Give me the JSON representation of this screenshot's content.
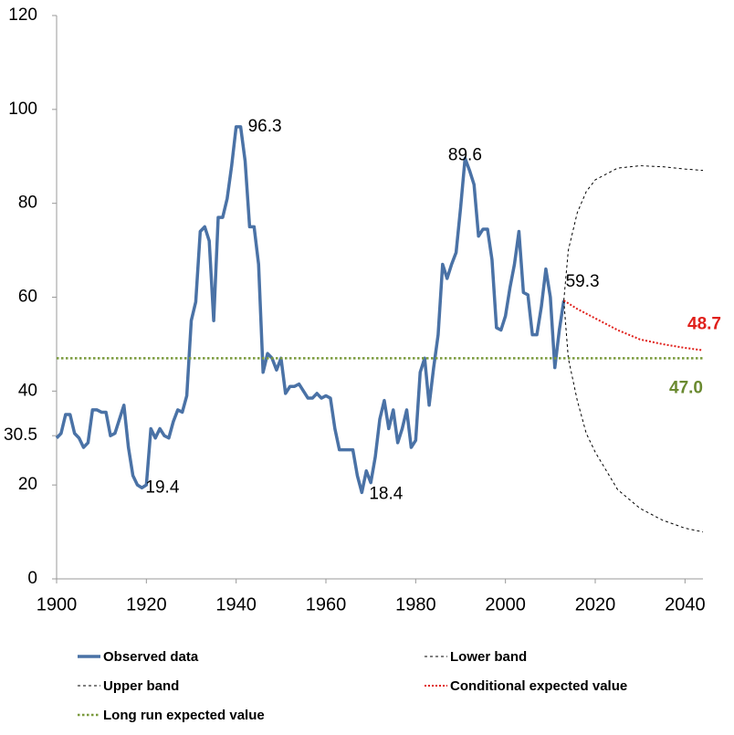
{
  "chart_data": {
    "type": "line",
    "xlim": [
      1900,
      2044
    ],
    "xticks": [
      1900,
      1920,
      1940,
      1960,
      1980,
      2000,
      2020,
      2040
    ],
    "ylim": [
      0,
      120
    ],
    "yticks": [
      0,
      20,
      30.5,
      40,
      60,
      80,
      100,
      120
    ],
    "grid": false,
    "legend": "bottom",
    "series": [
      {
        "name": "Observed data",
        "color": "#4a72a6",
        "style": "solid",
        "x": [
          1900,
          1901,
          1902,
          1903,
          1904,
          1905,
          1906,
          1907,
          1908,
          1909,
          1910,
          1911,
          1912,
          1913,
          1914,
          1915,
          1916,
          1917,
          1918,
          1919,
          1920,
          1921,
          1922,
          1923,
          1924,
          1925,
          1926,
          1927,
          1928,
          1929,
          1930,
          1931,
          1932,
          1933,
          1934,
          1935,
          1936,
          1937,
          1938,
          1939,
          1940,
          1941,
          1942,
          1943,
          1944,
          1945,
          1946,
          1947,
          1948,
          1949,
          1950,
          1951,
          1952,
          1953,
          1954,
          1955,
          1956,
          1957,
          1958,
          1959,
          1960,
          1961,
          1962,
          1963,
          1964,
          1965,
          1966,
          1967,
          1968,
          1969,
          1970,
          1971,
          1972,
          1973,
          1974,
          1975,
          1976,
          1977,
          1978,
          1979,
          1980,
          1981,
          1982,
          1983,
          1984,
          1985,
          1986,
          1987,
          1988,
          1989,
          1990,
          1991,
          1992,
          1993,
          1994,
          1995,
          1996,
          1997,
          1998,
          1999,
          2000,
          2001,
          2002,
          2003,
          2004,
          2005,
          2006,
          2007,
          2008,
          2009,
          2010,
          2011,
          2012,
          2013
        ],
        "values": [
          30,
          31,
          35,
          35,
          31,
          30,
          28,
          29,
          36,
          36,
          35.5,
          35.5,
          30.5,
          31,
          34,
          37,
          28,
          22,
          20,
          19.4,
          20,
          32,
          30,
          32,
          30.5,
          30,
          33.5,
          36,
          35.5,
          39,
          55,
          59,
          74,
          75,
          72,
          55,
          77,
          77,
          81,
          88,
          96.3,
          96.3,
          89,
          75,
          75,
          67,
          44,
          48,
          47,
          44.5,
          47,
          39.5,
          41,
          41,
          41.5,
          40,
          38.5,
          38.5,
          39.5,
          38.5,
          39,
          38.5,
          32,
          27.5,
          27.5,
          27.5,
          27.5,
          22,
          18.4,
          23,
          20.5,
          26,
          34,
          38,
          32,
          36,
          29,
          32,
          36,
          28,
          29.5,
          44,
          47,
          37,
          45,
          52,
          67,
          64,
          67,
          69.5,
          79,
          89.6,
          87,
          84,
          73,
          74.5,
          74.5,
          68,
          53.5,
          53,
          56,
          62,
          67,
          74,
          61,
          60.5,
          52,
          52,
          58,
          66,
          60,
          45,
          53,
          59.3
        ]
      },
      {
        "name": "Lower band",
        "color": "#000000",
        "style": "dashed",
        "x": [
          2013,
          2014,
          2016,
          2018,
          2020,
          2025,
          2030,
          2035,
          2040,
          2044
        ],
        "values": [
          59.3,
          47,
          38,
          31,
          27,
          19,
          15,
          12.5,
          10.8,
          10
        ]
      },
      {
        "name": "Upper band",
        "color": "#000000",
        "style": "dashed",
        "x": [
          2013,
          2014,
          2016,
          2018,
          2020,
          2025,
          2030,
          2035,
          2040,
          2044
        ],
        "values": [
          59.3,
          70,
          78,
          82.5,
          85,
          87.5,
          88,
          87.8,
          87.3,
          87
        ]
      },
      {
        "name": "Conditional expected value",
        "color": "#e0201b",
        "style": "dotted",
        "x": [
          2013,
          2016,
          2020,
          2025,
          2030,
          2035,
          2040,
          2044
        ],
        "values": [
          59.3,
          57.5,
          55.5,
          53,
          51,
          50,
          49.2,
          48.7
        ]
      },
      {
        "name": "Long run expected value",
        "color": "#7a9a3c",
        "style": "dotted-thick",
        "x": [
          1900,
          2044
        ],
        "values": [
          47,
          47
        ]
      }
    ],
    "annotations": [
      {
        "label": "96.3",
        "x": 1941,
        "y": 96.3
      },
      {
        "label": "89.6",
        "x": 1991,
        "y": 89.6
      },
      {
        "label": "19.4",
        "x": 1919,
        "y": 19.4
      },
      {
        "label": "18.4",
        "x": 1968,
        "y": 18.4
      },
      {
        "label": "59.3",
        "x": 2013,
        "y": 59.3
      },
      {
        "label": "48.7",
        "x": 2044,
        "y": 48.7,
        "color": "#e0201b"
      },
      {
        "label": "47.0",
        "x": 2044,
        "y": 47,
        "color": "#6a8a30"
      }
    ]
  }
}
